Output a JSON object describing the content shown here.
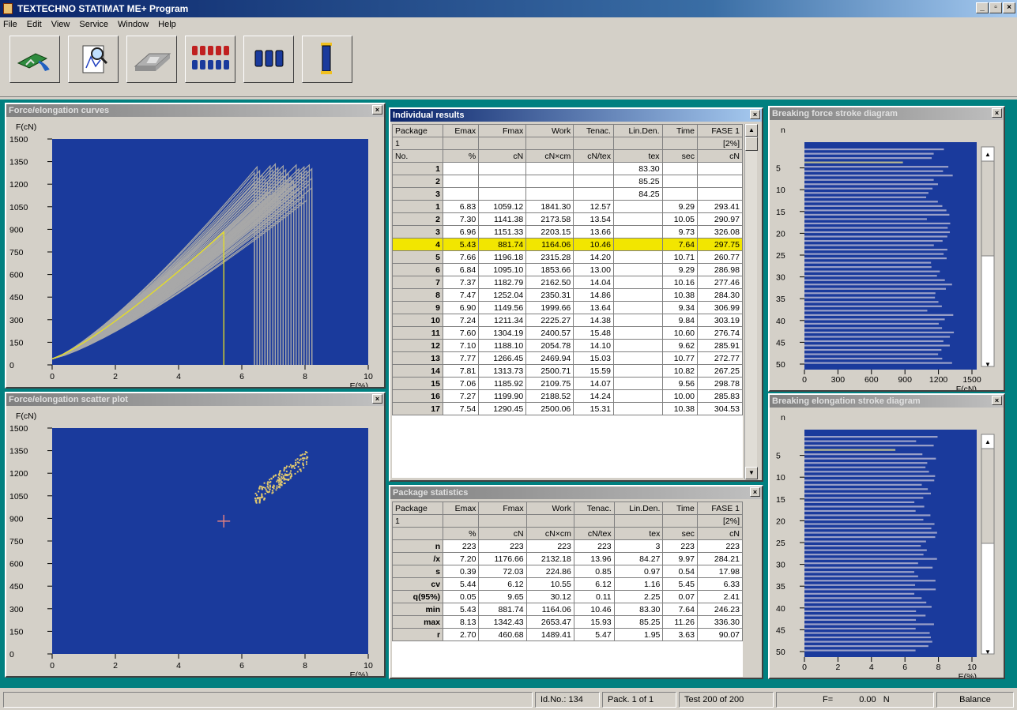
{
  "window": {
    "title": "TEXTECHNO STATIMAT ME+ Program"
  },
  "menu": [
    "File",
    "Edit",
    "View",
    "Service",
    "Window",
    "Help"
  ],
  "toolbar": {
    "icons": [
      "machine-icon",
      "report-preview-icon",
      "sample-plate-icon",
      "multi-bobbin-icon",
      "three-bobbin-icon",
      "single-bobbin-icon"
    ]
  },
  "curves": {
    "title": "Force/elongation curves",
    "ylabel": "F(cN)",
    "xlabel": "E(%)",
    "yticks": [
      "1500",
      "1350",
      "1200",
      "1050",
      "900",
      "750",
      "600",
      "450",
      "300",
      "150",
      "0"
    ],
    "xticks": [
      "0",
      "2",
      "4",
      "6",
      "8",
      "10"
    ]
  },
  "scatter": {
    "title": "Force/elongation scatter plot",
    "ylabel": "F(cN)",
    "xlabel": "E(%)",
    "yticks": [
      "1500",
      "1350",
      "1200",
      "1050",
      "900",
      "750",
      "600",
      "450",
      "300",
      "150",
      "0"
    ],
    "xticks": [
      "0",
      "2",
      "4",
      "6",
      "8",
      "10"
    ]
  },
  "results": {
    "title": "Individual results",
    "header1": [
      "Package",
      "Emax",
      "Fmax",
      "Work",
      "Tenac.",
      "Lin.Den.",
      "Time",
      "FASE 1"
    ],
    "header2": [
      "1",
      "",
      "",
      "",
      "",
      "",
      "",
      "[2%]"
    ],
    "header3": [
      "No.",
      "%",
      "cN",
      "cN×cm",
      "cN/tex",
      "tex",
      "sec",
      "cN"
    ],
    "rows": [
      [
        "1",
        "",
        "",
        "",
        "",
        "83.30",
        "",
        ""
      ],
      [
        "2",
        "",
        "",
        "",
        "",
        "85.25",
        "",
        ""
      ],
      [
        "3",
        "",
        "",
        "",
        "",
        "84.25",
        "",
        ""
      ],
      [
        "1",
        "6.83",
        "1059.12",
        "1841.30",
        "12.57",
        "",
        "9.29",
        "293.41"
      ],
      [
        "2",
        "7.30",
        "1141.38",
        "2173.58",
        "13.54",
        "",
        "10.05",
        "290.97"
      ],
      [
        "3",
        "6.96",
        "1151.33",
        "2203.15",
        "13.66",
        "",
        "9.73",
        "326.08"
      ],
      [
        "4",
        "5.43",
        "881.74",
        "1164.06",
        "10.46",
        "",
        "7.64",
        "297.75"
      ],
      [
        "5",
        "7.66",
        "1196.18",
        "2315.28",
        "14.20",
        "",
        "10.71",
        "260.77"
      ],
      [
        "6",
        "6.84",
        "1095.10",
        "1853.66",
        "13.00",
        "",
        "9.29",
        "286.98"
      ],
      [
        "7",
        "7.37",
        "1182.79",
        "2162.50",
        "14.04",
        "",
        "10.16",
        "277.46"
      ],
      [
        "8",
        "7.47",
        "1252.04",
        "2350.31",
        "14.86",
        "",
        "10.38",
        "284.30"
      ],
      [
        "9",
        "6.90",
        "1149.56",
        "1999.66",
        "13.64",
        "",
        "9.34",
        "306.99"
      ],
      [
        "10",
        "7.24",
        "1211.34",
        "2225.27",
        "14.38",
        "",
        "9.84",
        "303.19"
      ],
      [
        "11",
        "7.60",
        "1304.19",
        "2400.57",
        "15.48",
        "",
        "10.60",
        "276.74"
      ],
      [
        "12",
        "7.10",
        "1188.10",
        "2054.78",
        "14.10",
        "",
        "9.62",
        "285.91"
      ],
      [
        "13",
        "7.77",
        "1266.45",
        "2469.94",
        "15.03",
        "",
        "10.77",
        "272.77"
      ],
      [
        "14",
        "7.81",
        "1313.73",
        "2500.71",
        "15.59",
        "",
        "10.82",
        "267.25"
      ],
      [
        "15",
        "7.06",
        "1185.92",
        "2109.75",
        "14.07",
        "",
        "9.56",
        "298.78"
      ],
      [
        "16",
        "7.27",
        "1199.90",
        "2188.52",
        "14.24",
        "",
        "10.00",
        "285.83"
      ],
      [
        "17",
        "7.54",
        "1290.45",
        "2500.06",
        "15.31",
        "",
        "10.38",
        "304.53"
      ]
    ],
    "selected_row": 6
  },
  "stats": {
    "title": "Package statistics",
    "header1": [
      "Package",
      "Emax",
      "Fmax",
      "Work",
      "Tenac.",
      "Lin.Den.",
      "Time",
      "FASE 1"
    ],
    "header2": [
      "1",
      "",
      "",
      "",
      "",
      "",
      "",
      "[2%]"
    ],
    "header3": [
      "",
      "%",
      "cN",
      "cN×cm",
      "cN/tex",
      "tex",
      "sec",
      "cN"
    ],
    "rows": [
      [
        "n",
        "223",
        "223",
        "223",
        "223",
        "3",
        "223",
        "223"
      ],
      [
        "/x",
        "7.20",
        "1176.66",
        "2132.18",
        "13.96",
        "84.27",
        "9.97",
        "284.21"
      ],
      [
        "s",
        "0.39",
        "72.03",
        "224.86",
        "0.85",
        "0.97",
        "0.54",
        "17.98"
      ],
      [
        "cv",
        "5.44",
        "6.12",
        "10.55",
        "6.12",
        "1.16",
        "5.45",
        "6.33"
      ],
      [
        "q(95%)",
        "0.05",
        "9.65",
        "30.12",
        "0.11",
        "2.25",
        "0.07",
        "2.41"
      ],
      [
        "min",
        "5.43",
        "881.74",
        "1164.06",
        "10.46",
        "83.30",
        "7.64",
        "246.23"
      ],
      [
        "max",
        "8.13",
        "1342.43",
        "2653.47",
        "15.93",
        "85.25",
        "11.26",
        "336.30"
      ],
      [
        "r",
        "2.70",
        "460.68",
        "1489.41",
        "5.47",
        "1.95",
        "3.63",
        "90.07"
      ]
    ]
  },
  "force_stroke": {
    "title": "Breaking force stroke diagram",
    "ylabel": "n",
    "xlabel": "F(cN)",
    "yticks": [
      "5",
      "10",
      "15",
      "20",
      "25",
      "30",
      "35",
      "40",
      "45",
      "50"
    ],
    "xticks": [
      "0",
      "300",
      "600",
      "900",
      "1200",
      "1500"
    ]
  },
  "elong_stroke": {
    "title": "Breaking elongation stroke diagram",
    "ylabel": "n",
    "xlabel": "E(%)",
    "yticks": [
      "5",
      "10",
      "15",
      "20",
      "25",
      "30",
      "35",
      "40",
      "45",
      "50"
    ],
    "xticks": [
      "0",
      "2",
      "4",
      "6",
      "8",
      "10"
    ]
  },
  "status": {
    "id": "Id.No.: 134",
    "pack": "Pack. 1 of 1",
    "test": "Test 200 of 200",
    "f_label": "F=",
    "f_value": "0.00",
    "unit": "N",
    "mode": "Balance"
  },
  "colors": {
    "plot_bg": "#1a3a9c",
    "curve": "#a8a8a8",
    "highlight": "#e8e020",
    "mdi": "#008080"
  }
}
